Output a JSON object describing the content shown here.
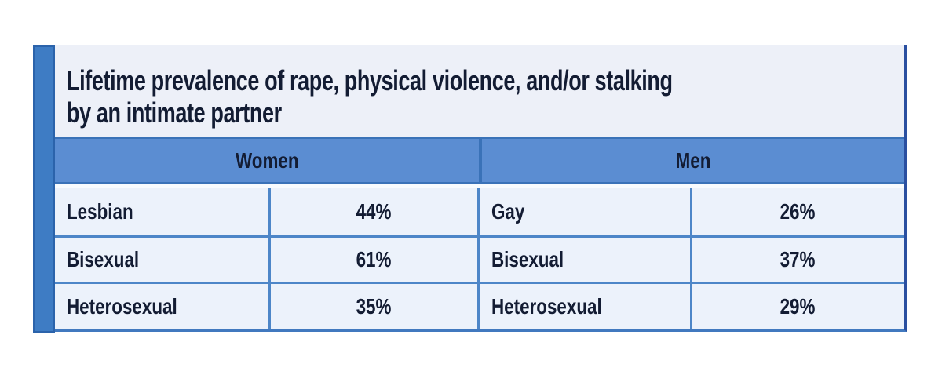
{
  "colors": {
    "accent_bar": "#3e7cc4",
    "accent_bar_border": "#2b63ab",
    "panel_bg": "#edf0f8",
    "cell_bg": "#ecf2fb",
    "header_band_bg": "#5b8dd2",
    "grid_line": "#4d86c8",
    "dark_line": "#3a72b8",
    "outer_right_border": "#2a4fa0",
    "outer_bottom_border": "#4179bf",
    "text": "#131c33",
    "light_gap": "#f8fbfe"
  },
  "table": {
    "title_lines": [
      "Lifetime prevalence of rape, physical violence, and/or stalking",
      "by an intimate partner"
    ],
    "col_headers": {
      "women": "Women",
      "men": "Men"
    },
    "rows": [
      {
        "w_label": "Lesbian",
        "w_value": "44%",
        "m_label": "Gay",
        "m_value": "26%"
      },
      {
        "w_label": "Bisexual",
        "w_value": "61%",
        "m_label": "Bisexual",
        "m_value": "37%"
      },
      {
        "w_label": "Heterosexual",
        "w_value": "35%",
        "m_label": "Heterosexual",
        "m_value": "29%"
      }
    ]
  },
  "chart_data": {
    "type": "table",
    "title": "Lifetime prevalence of rape, physical violence, and/or stalking by an intimate partner",
    "groups": [
      {
        "header": "Women",
        "categories": [
          "Lesbian",
          "Bisexual",
          "Heterosexual"
        ],
        "values_percent": [
          44,
          61,
          35
        ]
      },
      {
        "header": "Men",
        "categories": [
          "Gay",
          "Bisexual",
          "Heterosexual"
        ],
        "values_percent": [
          26,
          37,
          29
        ]
      }
    ]
  }
}
